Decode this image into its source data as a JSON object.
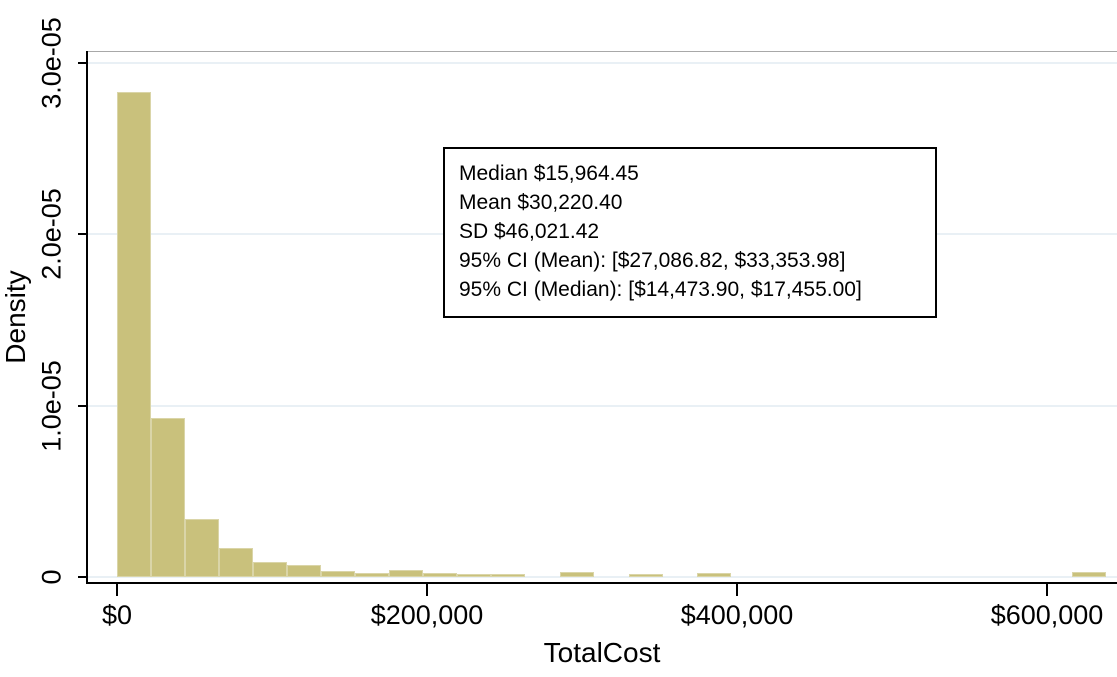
{
  "chart_data": {
    "type": "histogram",
    "title": "",
    "xlabel": "TotalCost",
    "ylabel": "Density",
    "grid": "horizontal-only",
    "legend": "none",
    "xlim": [
      0,
      648000
    ],
    "ylim": [
      0,
      3.07e-05
    ],
    "bin_width_dollars": 21900,
    "x_ticks": [
      {
        "label": "$0",
        "value": 0
      },
      {
        "label": "$200,000",
        "value": 200000
      },
      {
        "label": "$400,000",
        "value": 400000
      },
      {
        "label": "$600,000",
        "value": 600000
      }
    ],
    "y_ticks": [
      {
        "label": "0",
        "value": 0
      },
      {
        "label": "1.0e-05",
        "value": 1e-05
      },
      {
        "label": "2.0e-05",
        "value": 2e-05
      },
      {
        "label": "3.0e-05",
        "value": 3e-05
      }
    ],
    "bins": [
      {
        "x0": 0,
        "x1": 21900,
        "density": 2.83e-05
      },
      {
        "x0": 21900,
        "x1": 43900,
        "density": 9.3e-06
      },
      {
        "x0": 43900,
        "x1": 65800,
        "density": 3.4e-06
      },
      {
        "x0": 65800,
        "x1": 87700,
        "density": 1.7e-06
      },
      {
        "x0": 87700,
        "x1": 109700,
        "density": 8.7e-07
      },
      {
        "x0": 109700,
        "x1": 131600,
        "density": 7e-07
      },
      {
        "x0": 131600,
        "x1": 153500,
        "density": 3.5e-07
      },
      {
        "x0": 153500,
        "x1": 175500,
        "density": 2.3e-07
      },
      {
        "x0": 175500,
        "x1": 197400,
        "density": 4.1e-07
      },
      {
        "x0": 197400,
        "x1": 219400,
        "density": 2.3e-07
      },
      {
        "x0": 219400,
        "x1": 241300,
        "density": 1.7e-07
      },
      {
        "x0": 241300,
        "x1": 263200,
        "density": 1.7e-07
      },
      {
        "x0": 285800,
        "x1": 307700,
        "density": 2.9e-07
      },
      {
        "x0": 330300,
        "x1": 352200,
        "density": 1.7e-07
      },
      {
        "x0": 374200,
        "x1": 396100,
        "density": 2.6e-07
      },
      {
        "x0": 616100,
        "x1": 638000,
        "density": 2.9e-07
      }
    ]
  },
  "annotation": {
    "lines": [
      "Median $15,964.45",
      "Mean $30,220.40",
      "SD $46,021.42",
      "95% CI (Mean): [$27,086.82, $33,353.98]",
      "95% CI (Median): [$14,473.90, $17,455.00]"
    ]
  },
  "colors": {
    "bar_fill": "#c9c17c",
    "bar_border": "#dad5a8",
    "gridline": "#e9f0f5",
    "axis_line": "#000000",
    "plot_top_border": "#a8a8a8",
    "background": "#ffffff",
    "text": "#000000"
  }
}
